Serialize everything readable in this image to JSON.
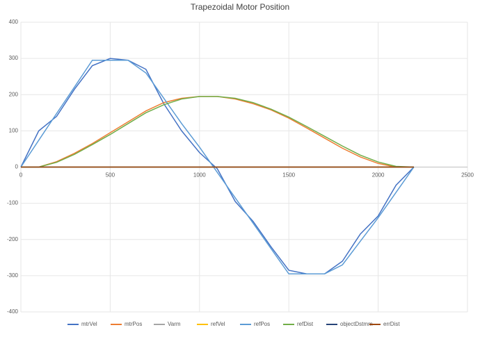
{
  "chart_data": {
    "type": "line",
    "title": "Trapezoidal Motor Position",
    "x": [
      0,
      100,
      200,
      300,
      400,
      500,
      600,
      700,
      800,
      900,
      1000,
      1100,
      1200,
      1300,
      1400,
      1500,
      1600,
      1700,
      1800,
      1900,
      2000,
      2100,
      2200
    ],
    "series": [
      {
        "name": "mtrVel",
        "color": "#4472c4",
        "values": [
          0,
          100,
          140,
          215,
          280,
          300,
          295,
          270,
          175,
          100,
          40,
          -5,
          -95,
          -150,
          -220,
          -285,
          -295,
          -295,
          -260,
          -185,
          -135,
          -50,
          0
        ]
      },
      {
        "name": "mtrPos",
        "color": "#ed7d31",
        "values": [
          0,
          0,
          15,
          38,
          65,
          95,
          125,
          155,
          178,
          190,
          195,
          195,
          188,
          175,
          158,
          135,
          108,
          80,
          52,
          28,
          10,
          0,
          0
        ]
      },
      {
        "name": "Varm",
        "color": "#a5a5a5",
        "values": [
          0,
          0,
          0,
          0,
          0,
          0,
          0,
          0,
          0,
          0,
          0,
          0,
          0,
          0,
          0,
          0,
          0,
          0,
          0,
          0,
          0,
          0,
          0
        ]
      },
      {
        "name": "refVel",
        "color": "#ffc000",
        "values": [
          0,
          0,
          0,
          0,
          0,
          0,
          0,
          0,
          0,
          0,
          0,
          0,
          0,
          0,
          0,
          0,
          0,
          0,
          0,
          0,
          0,
          0,
          0
        ]
      },
      {
        "name": "refPos",
        "color": "#5b9bd5",
        "values": [
          0,
          74,
          148,
          221,
          295,
          295,
          295,
          260,
          190,
          120,
          55,
          -15,
          -85,
          -155,
          -225,
          -295,
          -295,
          -295,
          -270,
          -205,
          -140,
          -70,
          0
        ]
      },
      {
        "name": "refDist",
        "color": "#70ad47",
        "values": [
          0,
          0,
          13,
          35,
          62,
          90,
          120,
          150,
          172,
          188,
          195,
          195,
          190,
          178,
          160,
          138,
          112,
          85,
          58,
          33,
          14,
          2,
          0
        ]
      },
      {
        "name": "objectDstmm",
        "color": "#264478",
        "values": [
          0,
          0,
          0,
          0,
          0,
          0,
          0,
          0,
          0,
          0,
          0,
          0,
          0,
          0,
          0,
          0,
          0,
          0,
          0,
          0,
          0,
          0,
          0
        ]
      },
      {
        "name": "errDist",
        "color": "#9e480e",
        "values": [
          0,
          0,
          0,
          0,
          0,
          0,
          0,
          0,
          0,
          0,
          0,
          0,
          0,
          0,
          0,
          0,
          0,
          0,
          0,
          0,
          0,
          0,
          0
        ]
      }
    ],
    "xlim": [
      0,
      2500
    ],
    "xticks": [
      0,
      500,
      1000,
      1500,
      2000,
      2500
    ],
    "ylim": [
      -400,
      400
    ],
    "yticks": [
      -400,
      -300,
      -200,
      -100,
      0,
      100,
      200,
      300,
      400
    ],
    "grid": true
  }
}
